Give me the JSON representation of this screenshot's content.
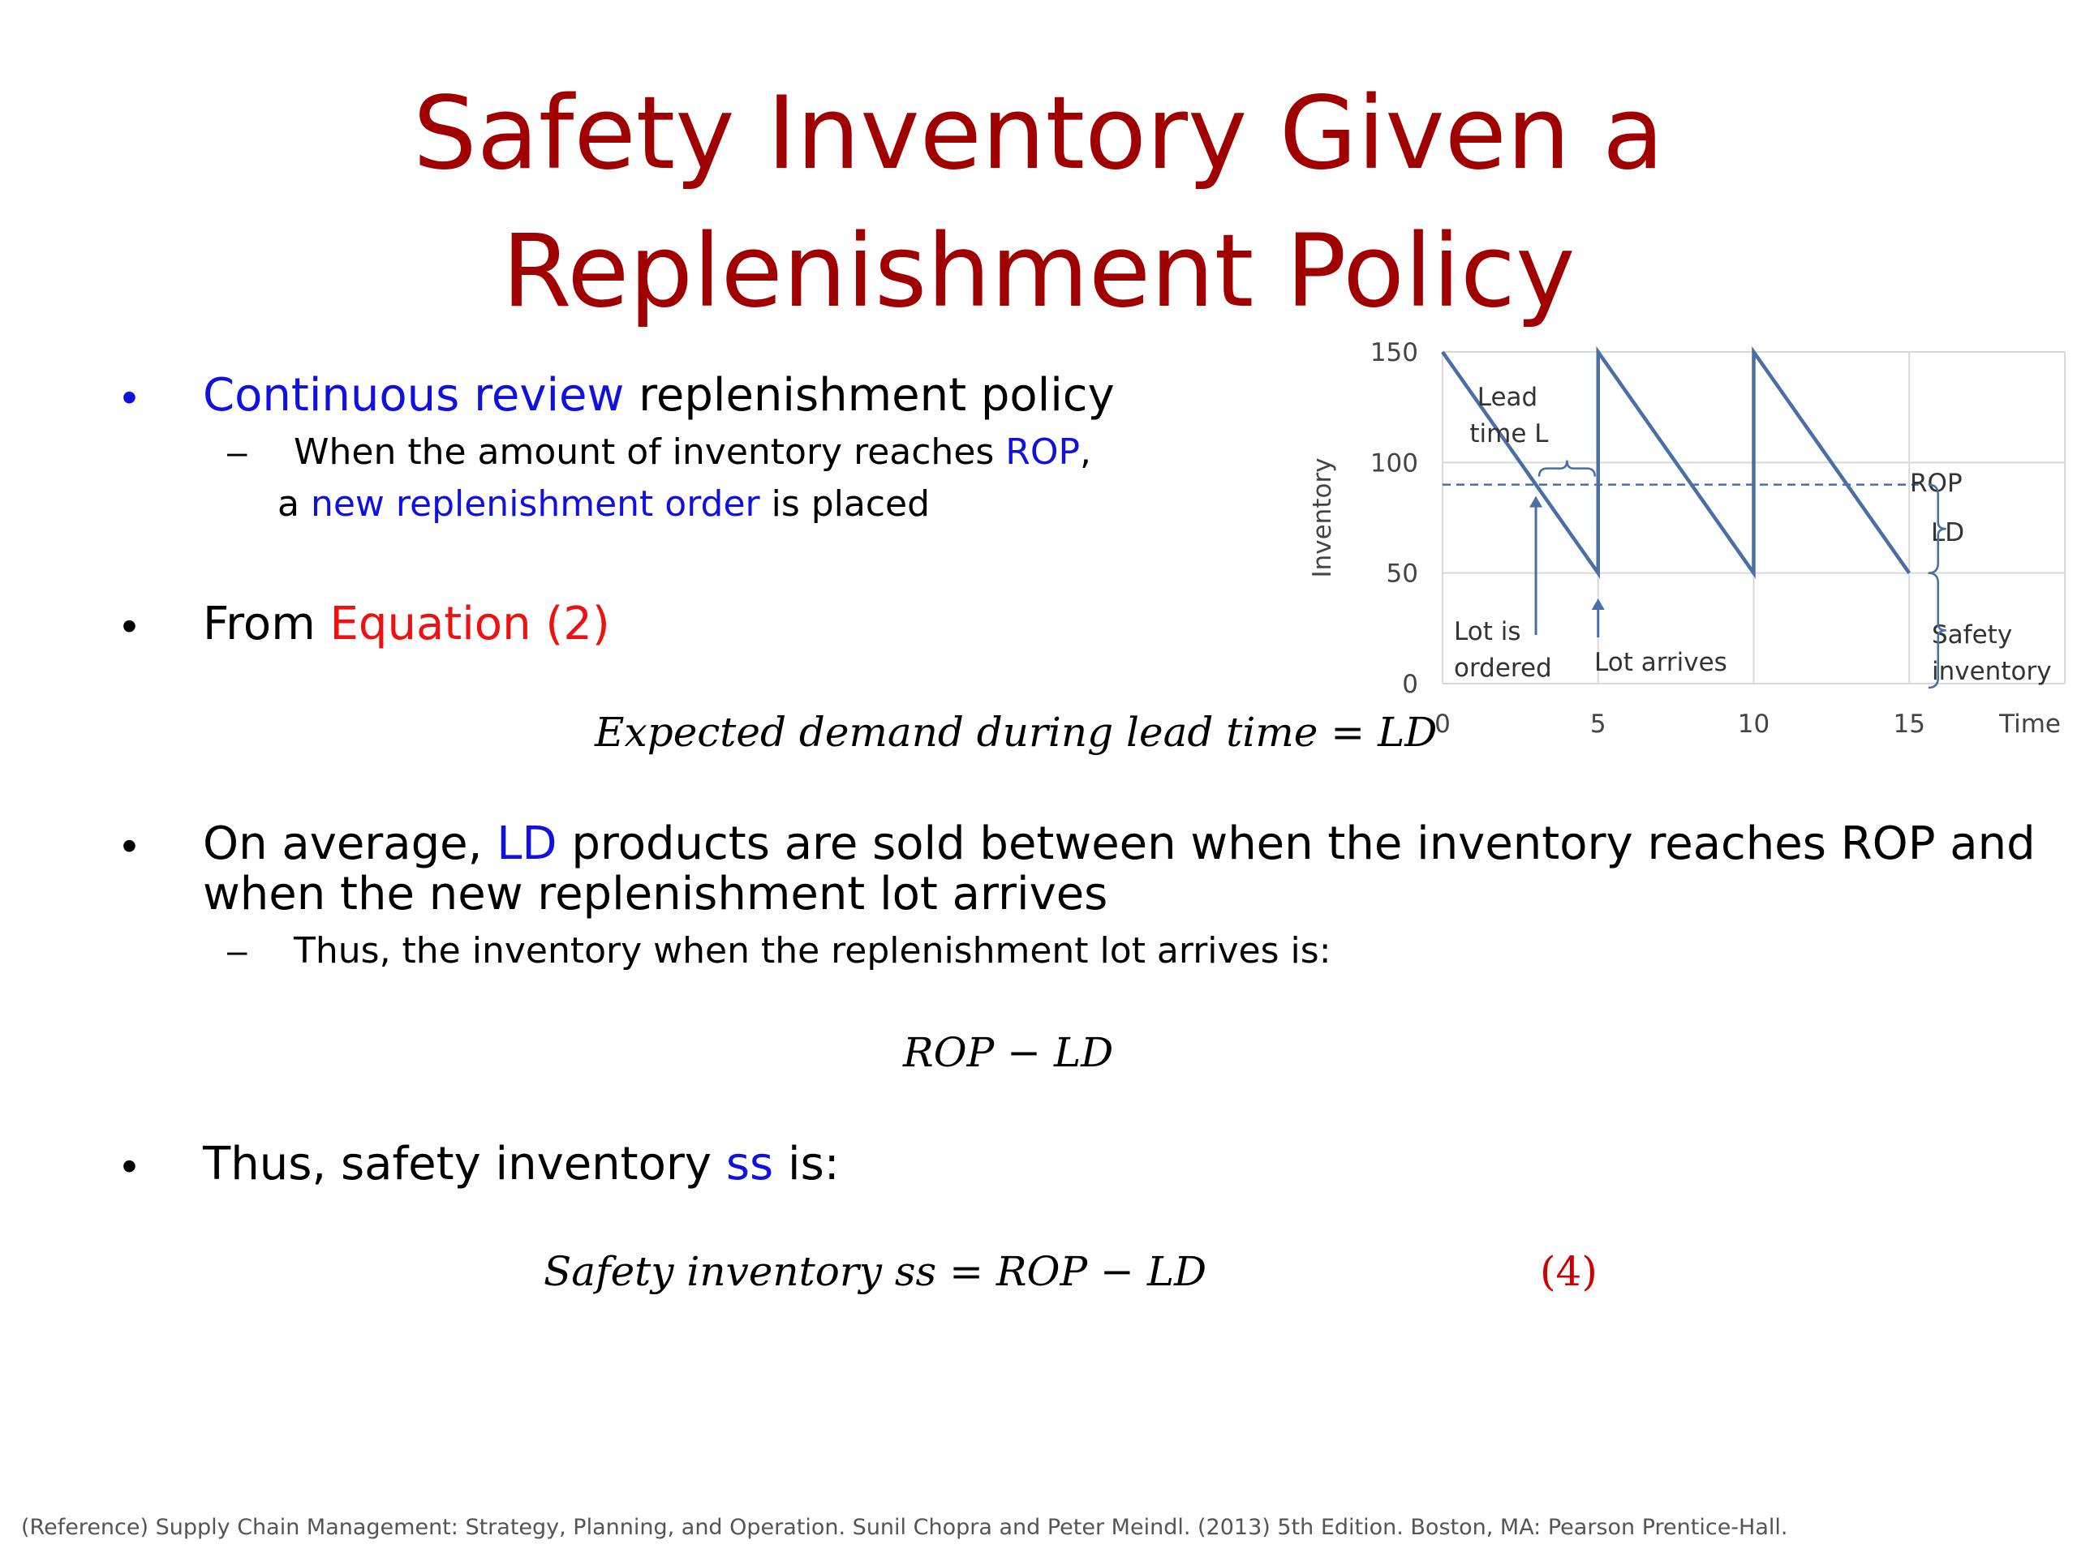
{
  "title": {
    "line1": "Safety Inventory Given a",
    "line2": "Replenishment Policy"
  },
  "bullet1": {
    "hl": "Continuous review",
    "rest": " replenishment policy",
    "sub": {
      "a": "When the amount of inventory reaches ",
      "rop": "ROP",
      "comma": ",",
      "b": "a ",
      "nro": "new replenishment order",
      "c": " is placed"
    }
  },
  "bullet2": {
    "a": "From ",
    "eq": "Equation (2)"
  },
  "eq_lead_time": "Expected demand during lead time = LD",
  "bullet3": {
    "a": "On average, ",
    "ld": "LD",
    "b": " products are sold between when the inventory reaches ROP and",
    "line2": "when the new replenishment lot arrives",
    "sub": "Thus, the inventory when the replenishment lot arrives is:"
  },
  "eq_rop_ld": "ROP − LD",
  "bullet4": {
    "a": "Thus, safety inventory ",
    "ss": "ss",
    "b": " is:"
  },
  "eq_ss": "Safety inventory ss = ROP − LD",
  "eq_number": "(4)",
  "bullet_char": "•",
  "dash_char": "–",
  "reference": "(Reference) Supply Chain Management: Strategy, Planning, and Operation. Sunil Chopra and Peter Meindl. (2013) 5th Edition. Boston, MA: Pearson Prentice-Hall.",
  "colors": {
    "title": "#a00000",
    "highlight_blue": "#1010e0",
    "highlight_red": "#ee1111",
    "series": "#4a6fa5",
    "grid": "#d9d9d9"
  },
  "chart_data": {
    "type": "line",
    "ylabel": "Inventory",
    "xlabel": "Time",
    "xlim": [
      0,
      20
    ],
    "ylim": [
      0,
      150
    ],
    "x_ticks": [
      "0",
      "5",
      "10",
      "15"
    ],
    "y_ticks": [
      "0",
      "50",
      "100",
      "150"
    ],
    "series": [
      {
        "x": [
          0,
          5,
          5,
          10,
          10,
          15
        ],
        "y": [
          150,
          50,
          150,
          50,
          150,
          50
        ]
      }
    ],
    "rop": 90,
    "annotations": {
      "lead_time_1": "Lead",
      "lead_time_2": "time L",
      "rop": "ROP",
      "ld": "LD",
      "safety_1": "Safety",
      "safety_2": "inventory",
      "lot_ordered_1": "Lot is",
      "lot_ordered_2": "ordered",
      "lot_arrives": "Lot arrives"
    },
    "grid": true
  }
}
